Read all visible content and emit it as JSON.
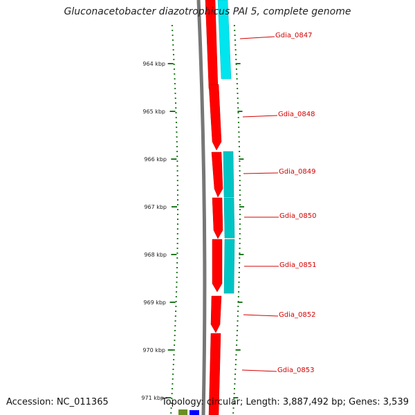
{
  "title": "Gluconacetobacter diazotrophicus PAI 5, complete genome",
  "footer": {
    "accession": "Accession: NC_011365",
    "summary": "Topology: circular; Length: 3,887,492 bp; Genes: 3,539"
  },
  "colors": {
    "forward_cds": "#ff0000",
    "reverse_cds": "#00e5ee",
    "reverse_cds_dark": "#00c4c4",
    "backbone": "#777777",
    "ticks": "#1e7a1e",
    "labels": "#d40000"
  },
  "scale_labels": [
    "964 kbp",
    "965 kbp",
    "966 kbp",
    "967 kbp",
    "968 kbp",
    "969 kbp",
    "970 kbp",
    "971 kbp"
  ],
  "genes": [
    "Gdia_0847",
    "Gdia_0848",
    "Gdia_0849",
    "Gdia_0850",
    "Gdia_0851",
    "Gdia_0852",
    "Gdia_0853"
  ]
}
